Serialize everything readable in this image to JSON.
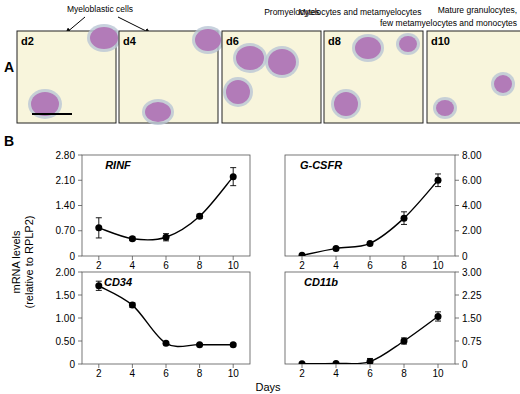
{
  "panel_a": {
    "label": "A",
    "captions": [
      [
        "Myeloblastic cells"
      ],
      [
        "Promyelocytes"
      ],
      [
        "Myelocytes and metamyelocytes"
      ],
      [
        "Mature granulocytes,",
        "few metamyelocytes and monocytes"
      ]
    ],
    "frames": [
      "d2",
      "d4",
      "d6",
      "d8",
      "d10"
    ]
  },
  "panel_b": {
    "label": "B",
    "y_label": [
      "mRNA levels",
      "(relative to RPLP2)"
    ],
    "x_label": "Days"
  },
  "chart_data": [
    {
      "type": "line",
      "title": "RINF",
      "x": [
        2,
        4,
        6,
        8,
        10
      ],
      "xlim": [
        1,
        11
      ],
      "xticks": [
        2,
        4,
        6,
        8,
        10
      ],
      "ylim": [
        0,
        2.8
      ],
      "yticks": [
        0,
        {
          "value": 0.7,
          "label": "0.70"
        },
        {
          "value": 1.4,
          "label": "1.40"
        },
        {
          "value": 2.1,
          "label": "2.10"
        },
        {
          "value": 2.8,
          "label": "2.80"
        }
      ],
      "values": [
        0.78,
        0.48,
        0.52,
        1.1,
        2.2
      ],
      "errors": [
        0.28,
        0.05,
        0.1,
        0.06,
        0.25
      ],
      "color": "#000000",
      "marker": "circle"
    },
    {
      "type": "line",
      "title": "G-CSFR",
      "x": [
        2,
        4,
        6,
        8,
        10
      ],
      "xlim": [
        1,
        11
      ],
      "xticks": [
        2,
        4,
        6,
        8,
        10
      ],
      "ylim": [
        0,
        8
      ],
      "yticks": [
        0,
        {
          "value": 2,
          "label": "2.00"
        },
        {
          "value": 4,
          "label": "4.00"
        },
        {
          "value": 6,
          "label": "6.00"
        },
        {
          "value": 8,
          "label": "8.00"
        }
      ],
      "values": [
        0.05,
        0.6,
        1.0,
        3.0,
        6.0
      ],
      "errors": [
        0.02,
        0.05,
        0.08,
        0.5,
        0.5
      ],
      "color": "#000000",
      "marker": "circle"
    },
    {
      "type": "line",
      "title": "CD34",
      "x": [
        2,
        4,
        6,
        8,
        10
      ],
      "xlim": [
        1,
        11
      ],
      "xticks": [
        2,
        4,
        6,
        8,
        10
      ],
      "ylim": [
        0,
        2
      ],
      "yticks": [
        0,
        {
          "value": 0.5,
          "label": "0.50"
        },
        {
          "value": 1,
          "label": "1.00"
        },
        {
          "value": 1.5,
          "label": "1.50"
        },
        {
          "value": 2,
          "label": "2.00"
        }
      ],
      "values": [
        1.7,
        1.28,
        0.45,
        0.42,
        0.42
      ],
      "errors": [
        0.1,
        0.05,
        0.02,
        0.02,
        0.03
      ],
      "color": "#000000",
      "marker": "circle"
    },
    {
      "type": "line",
      "title": "CD11b",
      "x": [
        2,
        4,
        6,
        8,
        10
      ],
      "xlim": [
        1,
        11
      ],
      "xticks": [
        2,
        4,
        6,
        8,
        10
      ],
      "ylim": [
        0,
        3
      ],
      "yticks": [
        0,
        {
          "value": 0.75,
          "label": "0.75"
        },
        {
          "value": 1.5,
          "label": "1.50"
        },
        {
          "value": 2.25,
          "label": "2.25"
        },
        {
          "value": 3,
          "label": "3.00"
        }
      ],
      "values": [
        0.01,
        0.02,
        0.08,
        0.75,
        1.55
      ],
      "errors": [
        0.01,
        0.01,
        0.1,
        0.1,
        0.15
      ],
      "color": "#000000",
      "marker": "circle"
    }
  ]
}
